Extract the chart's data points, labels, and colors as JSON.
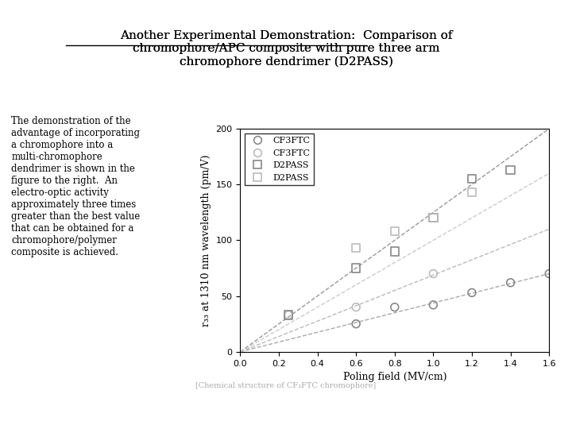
{
  "title_line1": "Another Experimental Demonstration:  Comparison of",
  "title_line2": "chromophore/APC composite with pure three arm",
  "title_line3": "chromophore dendrimer (D2PASS)",
  "title_underline": "Another Experimental Demonstration",
  "body_text": "The demonstration of the\nadvantage of incorporating\na chromophore into a\nmulti-chromophore\ndendrimer is shown in the\nfigure to the right.  An\nelectro-optic activity\napproximately three times\ngreater than the best value\nthat can be obtained for a\nchromophore/polymer\ncomposite is achieved.",
  "xlabel": "Poling field (MV/cm)",
  "ylabel": "r₃₃ at 1310 nm wavelength (pm/V)",
  "xlim": [
    0,
    1.6
  ],
  "ylim": [
    0,
    200
  ],
  "xticks": [
    0,
    0.2,
    0.4,
    0.6,
    0.8,
    1.0,
    1.2,
    1.4,
    1.6
  ],
  "yticks": [
    0,
    50,
    100,
    150,
    200
  ],
  "series": [
    {
      "label": "CF3FTC",
      "type": "scatter+line",
      "marker": "o",
      "markersize": 8,
      "color": "#aaaaaa",
      "linestyle": "--",
      "x_data": [
        0.6,
        0.8,
        1.0,
        1.2,
        1.4,
        1.6
      ],
      "y_data": [
        25,
        40,
        42,
        53,
        62,
        70
      ],
      "fit_x": [
        0.0,
        1.6
      ],
      "fit_y": [
        0,
        70
      ]
    },
    {
      "label": "CF3FTC",
      "type": "scatter+line",
      "marker": "o",
      "markersize": 8,
      "color": "#cccccc",
      "linestyle": "--",
      "x_data": [
        0.25,
        0.6,
        1.0
      ],
      "y_data": [
        33,
        40,
        70
      ],
      "fit_x": [
        0.0,
        1.6
      ],
      "fit_y": [
        0,
        110
      ]
    },
    {
      "label": "D2PASS",
      "type": "scatter+line",
      "marker": "s",
      "markersize": 8,
      "color": "#aaaaaa",
      "linestyle": "--",
      "x_data": [
        0.25,
        0.6,
        0.8,
        1.0,
        1.2,
        1.4
      ],
      "y_data": [
        33,
        75,
        90,
        120,
        155,
        163
      ],
      "fit_x": [
        0.0,
        1.6
      ],
      "fit_y": [
        0,
        200
      ]
    },
    {
      "label": "D2PASS",
      "type": "scatter+line",
      "marker": "s",
      "markersize": 8,
      "color": "#cccccc",
      "linestyle": "--",
      "x_data": [
        0.6,
        0.8,
        1.0,
        1.2
      ],
      "y_data": [
        93,
        108,
        120,
        143
      ],
      "fit_x": [
        0.0,
        1.6
      ],
      "fit_y": [
        0,
        160
      ]
    }
  ],
  "background_color": "#ffffff",
  "plot_bg_color": "#ffffff",
  "legend_labels": [
    "CF3FTC",
    "CF3FTC",
    "D2PASS",
    "D2PASS"
  ],
  "legend_markers": [
    "o",
    "o",
    "s",
    "s"
  ],
  "legend_marker_sizes": [
    8,
    8,
    8,
    8
  ],
  "legend_colors": [
    "#888888",
    "#bbbbbb",
    "#888888",
    "#bbbbbb"
  ]
}
